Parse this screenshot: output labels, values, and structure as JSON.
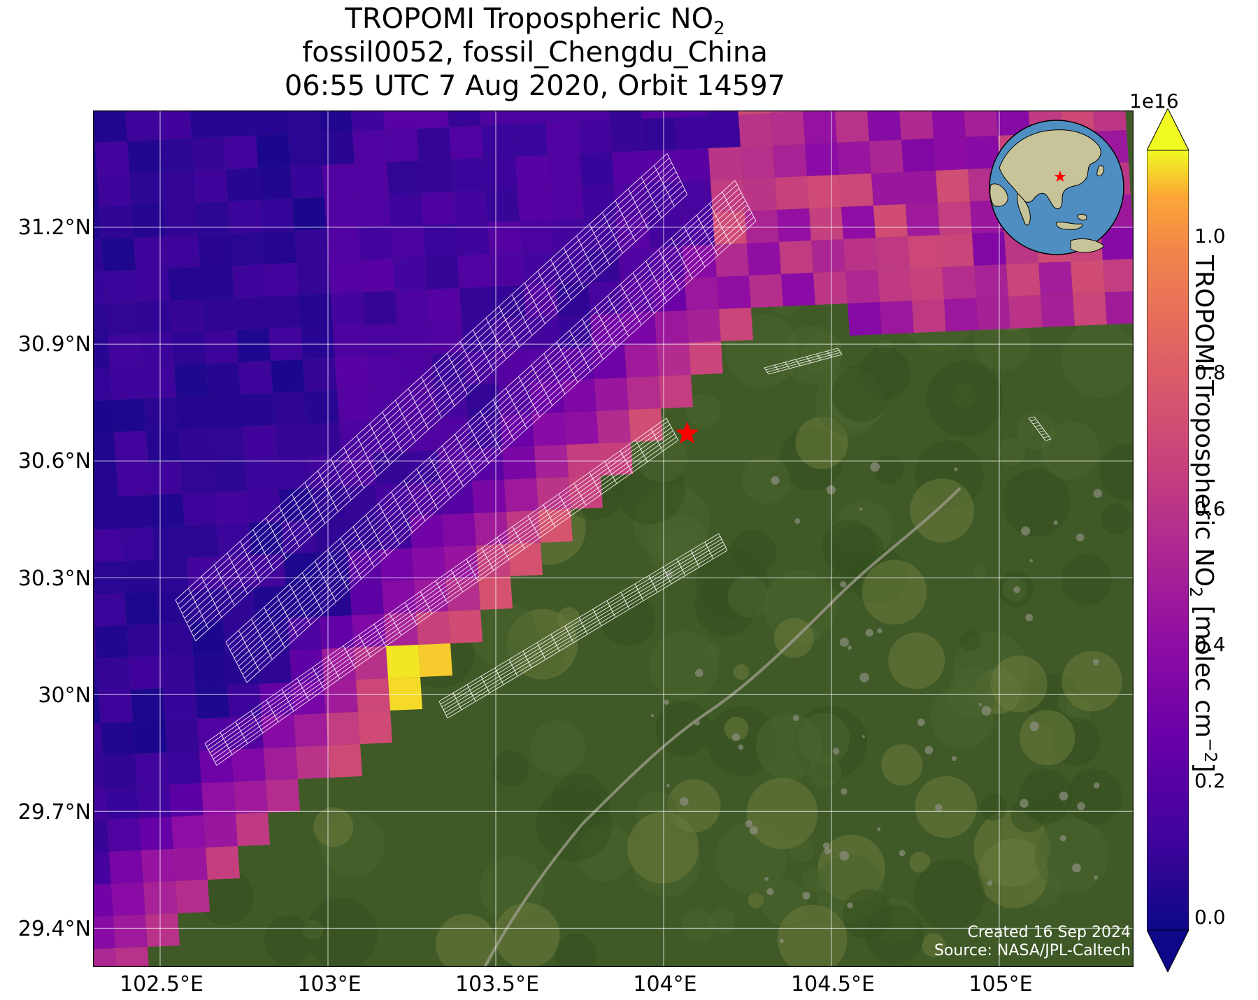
{
  "title": {
    "line1_text": "TROPOMI Tropospheric NO",
    "line1_sub": "2",
    "line2": "fossil0052, fossil_Chengdu_China",
    "line3": "06:55 UTC 7 Aug 2020, Orbit 14597"
  },
  "map": {
    "lat_ticks": [
      "31.2°N",
      "30.9°N",
      "30.6°N",
      "30.3°N",
      "30°N",
      "29.7°N",
      "29.4°N"
    ],
    "lat_values": [
      31.2,
      30.9,
      30.6,
      30.3,
      30.0,
      29.7,
      29.4
    ],
    "lon_ticks": [
      "102.5°E",
      "103°E",
      "103.5°E",
      "104°E",
      "104.5°E",
      "105°E"
    ],
    "lon_values": [
      102.5,
      103.0,
      103.5,
      104.0,
      104.5,
      105.0
    ],
    "lat_range": [
      29.3,
      31.5
    ],
    "lon_range": [
      102.3,
      105.4
    ],
    "target_marker": {
      "name": "star-marker",
      "lon": 104.07,
      "lat": 30.67,
      "color": "#ff0000"
    },
    "credits": {
      "created": "Created 16 Sep 2024",
      "source": "Source: NASA/JPL-Caltech"
    },
    "basemap_colors": {
      "forest": "#3f5a27",
      "field": "#6b7a3c",
      "river": "#9b9b88"
    }
  },
  "colorbar": {
    "scale_label": "1e16",
    "ticks": [
      "0.0",
      "0.2",
      "0.4",
      "0.6",
      "0.8",
      "1.0"
    ],
    "tick_values": [
      0.0,
      0.2,
      0.4,
      0.6,
      0.8,
      1.0
    ],
    "range": [
      -0.05,
      1.1
    ],
    "colormap": "plasma",
    "axis_label_text": "TROPOMI Tropospheric NO",
    "axis_label_sub": "2",
    "axis_label_unit": " [molec cm",
    "axis_label_exp": "−2",
    "axis_label_end": "]"
  },
  "inset_globe": {
    "name": "globe-inset",
    "ocean_color": "#4f8ec0",
    "land_color": "#c8c49a",
    "marker_color": "#ff0000"
  }
}
